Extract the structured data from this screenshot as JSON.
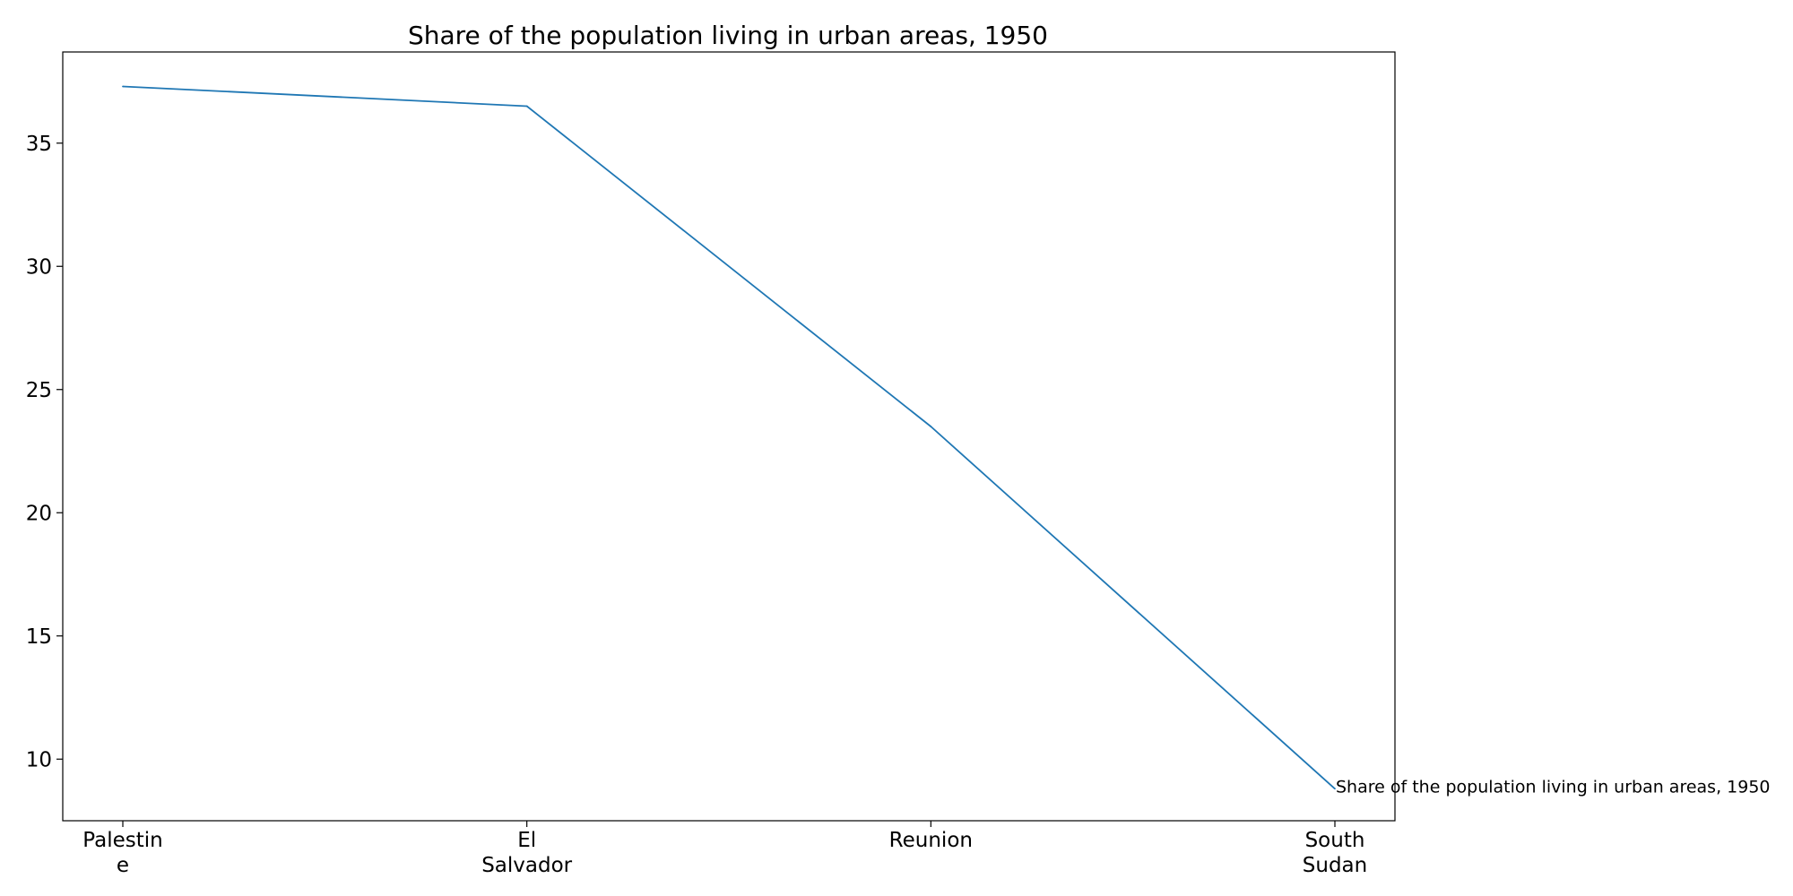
{
  "chart_data": {
    "type": "line",
    "title": "Share of the population living in urban areas, 1950",
    "xlabel": "",
    "ylabel": "",
    "categories": [
      "Palestine",
      "El Salvador",
      "Reunion",
      "South Sudan"
    ],
    "category_label_lines": [
      [
        "Palestin",
        "e"
      ],
      [
        "El",
        "Salvador"
      ],
      [
        "Reunion"
      ],
      [
        "South",
        "Sudan"
      ]
    ],
    "series": [
      {
        "name": "Share of the population living in urban areas, 1950",
        "values": [
          37.3,
          36.5,
          23.5,
          8.8
        ],
        "color": "#1f77b4"
      }
    ],
    "y_ticks": [
      10,
      15,
      20,
      25,
      30,
      35
    ],
    "ylim": [
      7.5,
      38.7
    ],
    "grid": false,
    "legend": "end-of-line label"
  }
}
